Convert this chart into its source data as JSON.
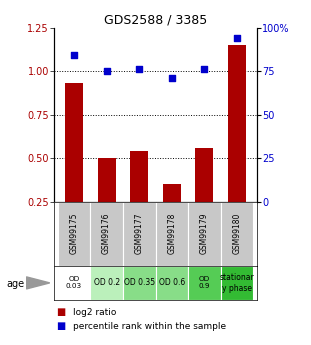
{
  "title": "GDS2588 / 3385",
  "samples": [
    "GSM99175",
    "GSM99176",
    "GSM99177",
    "GSM99178",
    "GSM99179",
    "GSM99180"
  ],
  "log2_ratio": [
    0.93,
    0.5,
    0.54,
    0.35,
    0.56,
    1.15
  ],
  "percentile_rank": [
    84,
    75,
    76,
    71,
    76,
    94
  ],
  "bar_color": "#aa0000",
  "dot_color": "#0000cc",
  "ylim_left": [
    0.25,
    1.25
  ],
  "ylim_right": [
    0,
    100
  ],
  "yticks_left": [
    0.25,
    0.5,
    0.75,
    1.0,
    1.25
  ],
  "yticks_right": [
    0,
    25,
    50,
    75,
    100
  ],
  "ytick_labels_right": [
    "0",
    "25",
    "50",
    "75",
    "100%"
  ],
  "hlines": [
    0.5,
    0.75,
    1.0
  ],
  "age_labels": [
    "OD\n0.03",
    "OD 0.2",
    "OD 0.35",
    "OD 0.6",
    "OD\n0.9",
    "stationar\ny phase"
  ],
  "age_bg_colors": [
    "#ffffff",
    "#bbf0bb",
    "#88dd88",
    "#88dd88",
    "#55cc55",
    "#33bb33"
  ],
  "sample_bg_color": "#c8c8c8",
  "legend_labels": [
    "log2 ratio",
    "percentile rank within the sample"
  ],
  "xlabel_age": "age"
}
